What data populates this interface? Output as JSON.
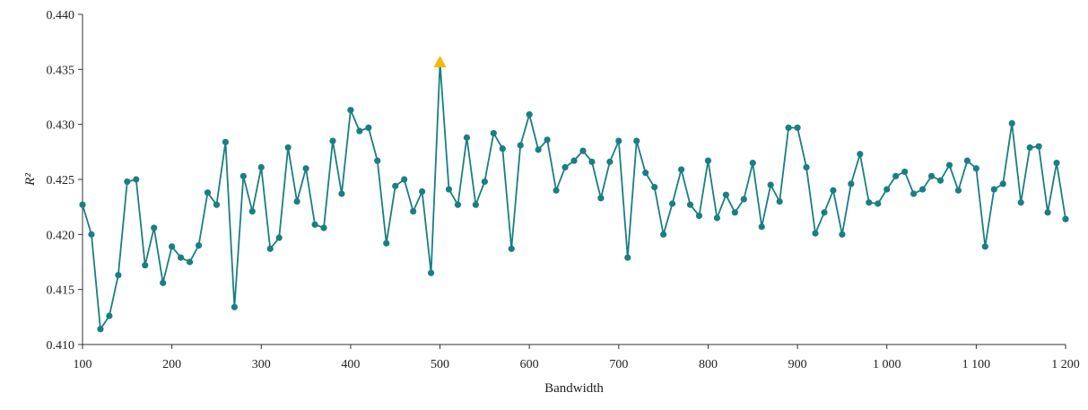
{
  "chart_data": {
    "type": "line",
    "title": "",
    "xlabel": "Bandwidth",
    "ylabel": "R²",
    "xlim": [
      100,
      1200
    ],
    "ylim": [
      0.41,
      0.44
    ],
    "grid": false,
    "colors": {
      "line": "#1a7f82",
      "marker": "#1a7f82",
      "highlight": "#f5b800"
    },
    "xticks": [
      {
        "value": 100,
        "label": "100"
      },
      {
        "value": 200,
        "label": "200"
      },
      {
        "value": 300,
        "label": "300"
      },
      {
        "value": 400,
        "label": "400"
      },
      {
        "value": 500,
        "label": "500"
      },
      {
        "value": 600,
        "label": "600"
      },
      {
        "value": 700,
        "label": "700"
      },
      {
        "value": 800,
        "label": "800"
      },
      {
        "value": 900,
        "label": "900"
      },
      {
        "value": 1000,
        "label": "1 000"
      },
      {
        "value": 1100,
        "label": "1 100"
      },
      {
        "value": 1200,
        "label": "1 200"
      }
    ],
    "yticks": [
      {
        "value": 0.41,
        "label": "0.410"
      },
      {
        "value": 0.415,
        "label": "0.415"
      },
      {
        "value": 0.42,
        "label": "0.420"
      },
      {
        "value": 0.425,
        "label": "0.425"
      },
      {
        "value": 0.43,
        "label": "0.430"
      },
      {
        "value": 0.435,
        "label": "0.435"
      },
      {
        "value": 0.44,
        "label": "0.440"
      }
    ],
    "highlight": {
      "x": 500,
      "y": 0.4356,
      "marker": "triangle"
    },
    "series": [
      {
        "x": [
          100,
          110,
          120,
          130,
          140,
          150,
          160,
          170,
          180,
          190,
          200,
          210,
          220,
          230,
          240,
          250,
          260,
          270,
          280,
          290,
          300,
          310,
          320,
          330,
          340,
          350,
          360,
          370,
          380,
          390,
          400,
          410,
          420,
          430,
          440,
          450,
          460,
          470,
          480,
          490,
          500,
          510,
          520,
          530,
          540,
          550,
          560,
          570,
          580,
          590,
          600,
          610,
          620,
          630,
          640,
          650,
          660,
          670,
          680,
          690,
          700,
          710,
          720,
          730,
          740,
          750,
          760,
          770,
          780,
          790,
          800,
          810,
          820,
          830,
          840,
          850,
          860,
          870,
          880,
          890,
          900,
          910,
          920,
          930,
          940,
          950,
          960,
          970,
          980,
          990,
          1000,
          1010,
          1020,
          1030,
          1040,
          1050,
          1060,
          1070,
          1080,
          1090,
          1100,
          1110,
          1120,
          1130,
          1140,
          1150,
          1160,
          1170,
          1180,
          1190,
          1200
        ],
        "values": [
          0.4227,
          0.42,
          0.4114,
          0.4126,
          0.4163,
          0.4248,
          0.425,
          0.4172,
          0.4206,
          0.4156,
          0.4189,
          0.4179,
          0.4175,
          0.419,
          0.4238,
          0.4227,
          0.4284,
          0.4134,
          0.4253,
          0.4221,
          0.4261,
          0.4187,
          0.4197,
          0.4279,
          0.423,
          0.426,
          0.4209,
          0.4206,
          0.4285,
          0.4237,
          0.4313,
          0.4294,
          0.4297,
          0.4267,
          0.4192,
          0.4244,
          0.425,
          0.4221,
          0.4239,
          0.4165,
          0.4356,
          0.4241,
          0.4227,
          0.4288,
          0.4227,
          0.4248,
          0.4292,
          0.4278,
          0.4187,
          0.4281,
          0.4309,
          0.4277,
          0.4286,
          0.424,
          0.4261,
          0.4267,
          0.4276,
          0.4266,
          0.4233,
          0.4266,
          0.4285,
          0.4179,
          0.4285,
          0.4256,
          0.4243,
          0.42,
          0.4228,
          0.4259,
          0.4227,
          0.4217,
          0.4267,
          0.4215,
          0.4236,
          0.422,
          0.4232,
          0.4265,
          0.4207,
          0.4245,
          0.423,
          0.4297,
          0.4297,
          0.4261,
          0.4201,
          0.422,
          0.424,
          0.42,
          0.4246,
          0.4273,
          0.4229,
          0.4228,
          0.4241,
          0.4253,
          0.4257,
          0.4237,
          0.4241,
          0.4253,
          0.4249,
          0.4263,
          0.424,
          0.4267,
          0.426,
          0.4189,
          0.4241,
          0.4246,
          0.4301,
          0.4229,
          0.4279,
          0.428,
          0.422,
          0.4265,
          0.4214
        ]
      }
    ]
  }
}
